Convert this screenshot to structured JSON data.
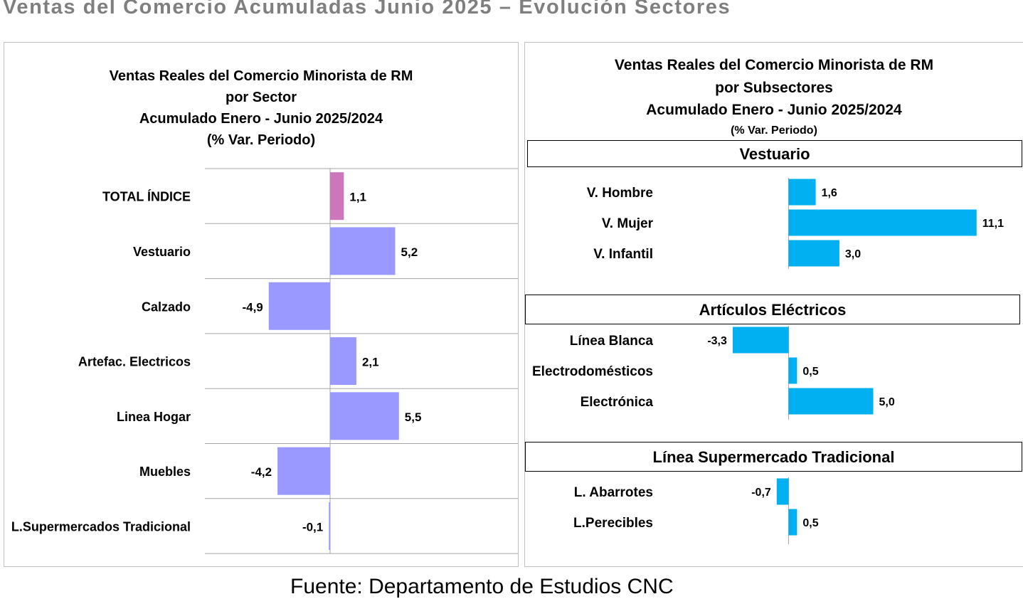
{
  "page_title": "Ventas del Comercio Acumuladas Junio 2025 – Evolución Sectores",
  "source": "Fuente: Departamento de Estudios CNC",
  "colors": {
    "total": "#cc77bb",
    "sector": "#9999ff",
    "subsector": "#00b0f0",
    "title_gray": "#7f7f7f"
  },
  "chart_data": [
    {
      "type": "bar",
      "orientation": "horizontal",
      "title_lines": [
        "Ventas Reales del Comercio Minorista de RM",
        "por Sector",
        "Acumulado Enero - Junio 2025/2024",
        "(% Var. Periodo)"
      ],
      "categories": [
        "TOTAL ÍNDICE",
        "Vestuario",
        "Calzado",
        "Artefac. Electricos",
        "Linea Hogar",
        "Muebles",
        "L.Supermercados Tradicional"
      ],
      "values": [
        1.1,
        5.2,
        -4.9,
        2.1,
        5.5,
        -4.2,
        -0.1
      ],
      "value_labels": [
        "1,1",
        "5,2",
        "-4,9",
        "2,1",
        "5,5",
        "-4,2",
        "-0,1"
      ],
      "xlim": [
        -10,
        15
      ],
      "grid": "horizontal"
    },
    {
      "type": "bar",
      "orientation": "horizontal",
      "title_lines": [
        "Ventas Reales del Comercio Minorista de RM",
        "por Subsectores",
        "Acumulado Enero - Junio  2025/2024",
        "(% Var. Periodo)"
      ],
      "xlim": [
        -8,
        13
      ],
      "groups": [
        {
          "name": "Vestuario",
          "categories": [
            "V. Hombre",
            "V. Mujer",
            "V. Infantil"
          ],
          "values": [
            1.6,
            11.1,
            3.0
          ],
          "value_labels": [
            "1,6",
            "11,1",
            "3,0"
          ]
        },
        {
          "name": "Artículos Eléctricos",
          "categories": [
            "Línea Blanca",
            "Electrodomésticos",
            "Electrónica"
          ],
          "values": [
            -3.3,
            0.5,
            5.0
          ],
          "value_labels": [
            "-3,3",
            "0,5",
            "5,0"
          ]
        },
        {
          "name": "Línea  Supermercado Tradicional",
          "categories": [
            "L. Abarrotes",
            "L.Perecibles"
          ],
          "values": [
            -0.7,
            0.5
          ],
          "value_labels": [
            "-0,7",
            "0,5"
          ]
        }
      ]
    }
  ]
}
